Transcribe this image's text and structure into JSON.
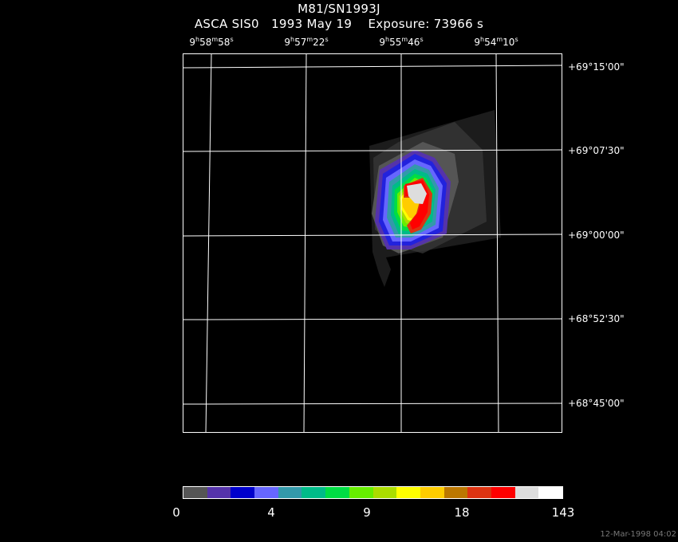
{
  "title": {
    "line1": "M81/SN1993J",
    "line2": "ASCA SIS0   1993 May 19    Exposure: 73966 s"
  },
  "ra_labels": [
    {
      "h": "9",
      "m": "58",
      "s": "58"
    },
    {
      "h": "9",
      "m": "57",
      "s": "22"
    },
    {
      "h": "9",
      "m": "55",
      "s": "46"
    },
    {
      "h": "9",
      "m": "54",
      "s": "10"
    }
  ],
  "dec_labels": [
    "+69°15'00\"",
    "+69°07'30\"",
    "+69°00'00\"",
    "+68°52'30\"",
    "+68°45'00\""
  ],
  "colorbar": {
    "colors": [
      "#555555",
      "#5533aa",
      "#0000cc",
      "#6666ff",
      "#3399aa",
      "#00bb88",
      "#00dd44",
      "#66ee00",
      "#aadd00",
      "#ffff00",
      "#ffcc00",
      "#bb7700",
      "#dd3311",
      "#ff0000",
      "#dddddd",
      "#ffffff"
    ],
    "ticks": [
      "0",
      "4",
      "9",
      "18",
      "143"
    ]
  },
  "timestamp": "12-Mar-1998 04:02"
}
